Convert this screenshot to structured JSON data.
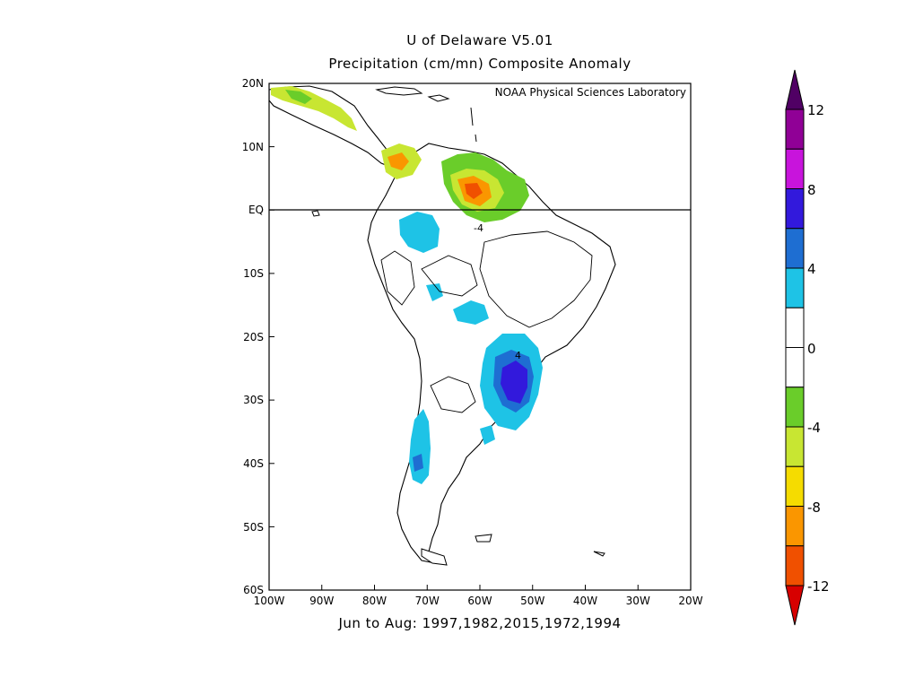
{
  "title": {
    "line1": "U of Delaware V5.01",
    "line2": "Precipitation (cm/mn) Composite Anomaly"
  },
  "credit": "NOAA Physical Sciences Laboratory",
  "footer": "Jun to Aug: 1997,1982,2015,1972,1994",
  "map": {
    "lon_range": [
      -100,
      -20
    ],
    "lat_range": [
      -60,
      20
    ],
    "lat_ticks": [
      "20N",
      "10N",
      "EQ",
      "10S",
      "20S",
      "30S",
      "40S",
      "50S",
      "60S"
    ],
    "lon_ticks": [
      "100W",
      "90W",
      "80W",
      "70W",
      "60W",
      "50W",
      "40W",
      "30W",
      "20W"
    ],
    "equator_line": true,
    "contour_labels": [
      "-4",
      "4"
    ]
  },
  "colorbar": {
    "labels": [
      "12",
      "8",
      "4",
      "0",
      "-4",
      "-8",
      "-12"
    ],
    "levels": [
      -12,
      -10,
      -8,
      -6,
      -4,
      -2,
      0,
      2,
      4,
      6,
      8,
      10,
      12
    ],
    "colors": [
      "#d70000",
      "#f05000",
      "#fa9600",
      "#f5dc00",
      "#c8e632",
      "#6acd2a",
      "#ffffff",
      "#ffffff",
      "#1ec3e6",
      "#1e6ed2",
      "#3219dc",
      "#c814dc",
      "#900096",
      "#500064"
    ]
  }
}
